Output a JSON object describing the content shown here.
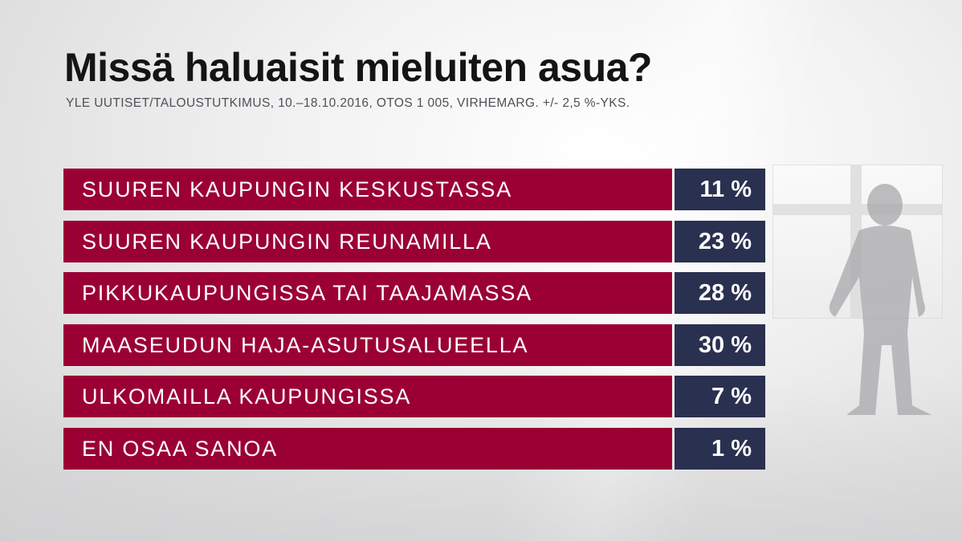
{
  "title": "Missä haluaisit mieluiten asua?",
  "subtitle": "YLE UUTISET/TALOUSTUTKIMUS, 10.–18.10.2016, OTOS 1 005, VIRHEMARG. +/- 2,5 %-YKS.",
  "colors": {
    "label_bar": "#9b0035",
    "value_box": "#2a3050",
    "title_text": "#141414",
    "subtitle_text": "#4f4f56"
  },
  "chart_data": {
    "type": "bar",
    "orientation": "horizontal",
    "title": "Missä haluaisit mieluiten asua?",
    "subtitle": "YLE UUTISET/TALOUSTUTKIMUS, 10.–18.10.2016, OTOS 1 005, VIRHEMARG. +/- 2,5 %-YKS.",
    "unit": "%",
    "categories": [
      "SUUREN KAUPUNGIN KESKUSTASSA",
      "SUUREN KAUPUNGIN REUNAMILLA",
      "PIKKUKAUPUNGISSA TAI TAAJAMASSA",
      "MAASEUDUN HAJA-ASUTUSALUEELLA",
      "ULKOMAILLA KAUPUNGISSA",
      "EN OSAA SANOA"
    ],
    "values": [
      11,
      23,
      28,
      30,
      7,
      1
    ],
    "value_labels": [
      "11 %",
      "23 %",
      "28 %",
      "30 %",
      "7 %",
      "1 %"
    ],
    "grid": false,
    "legend": "none"
  }
}
